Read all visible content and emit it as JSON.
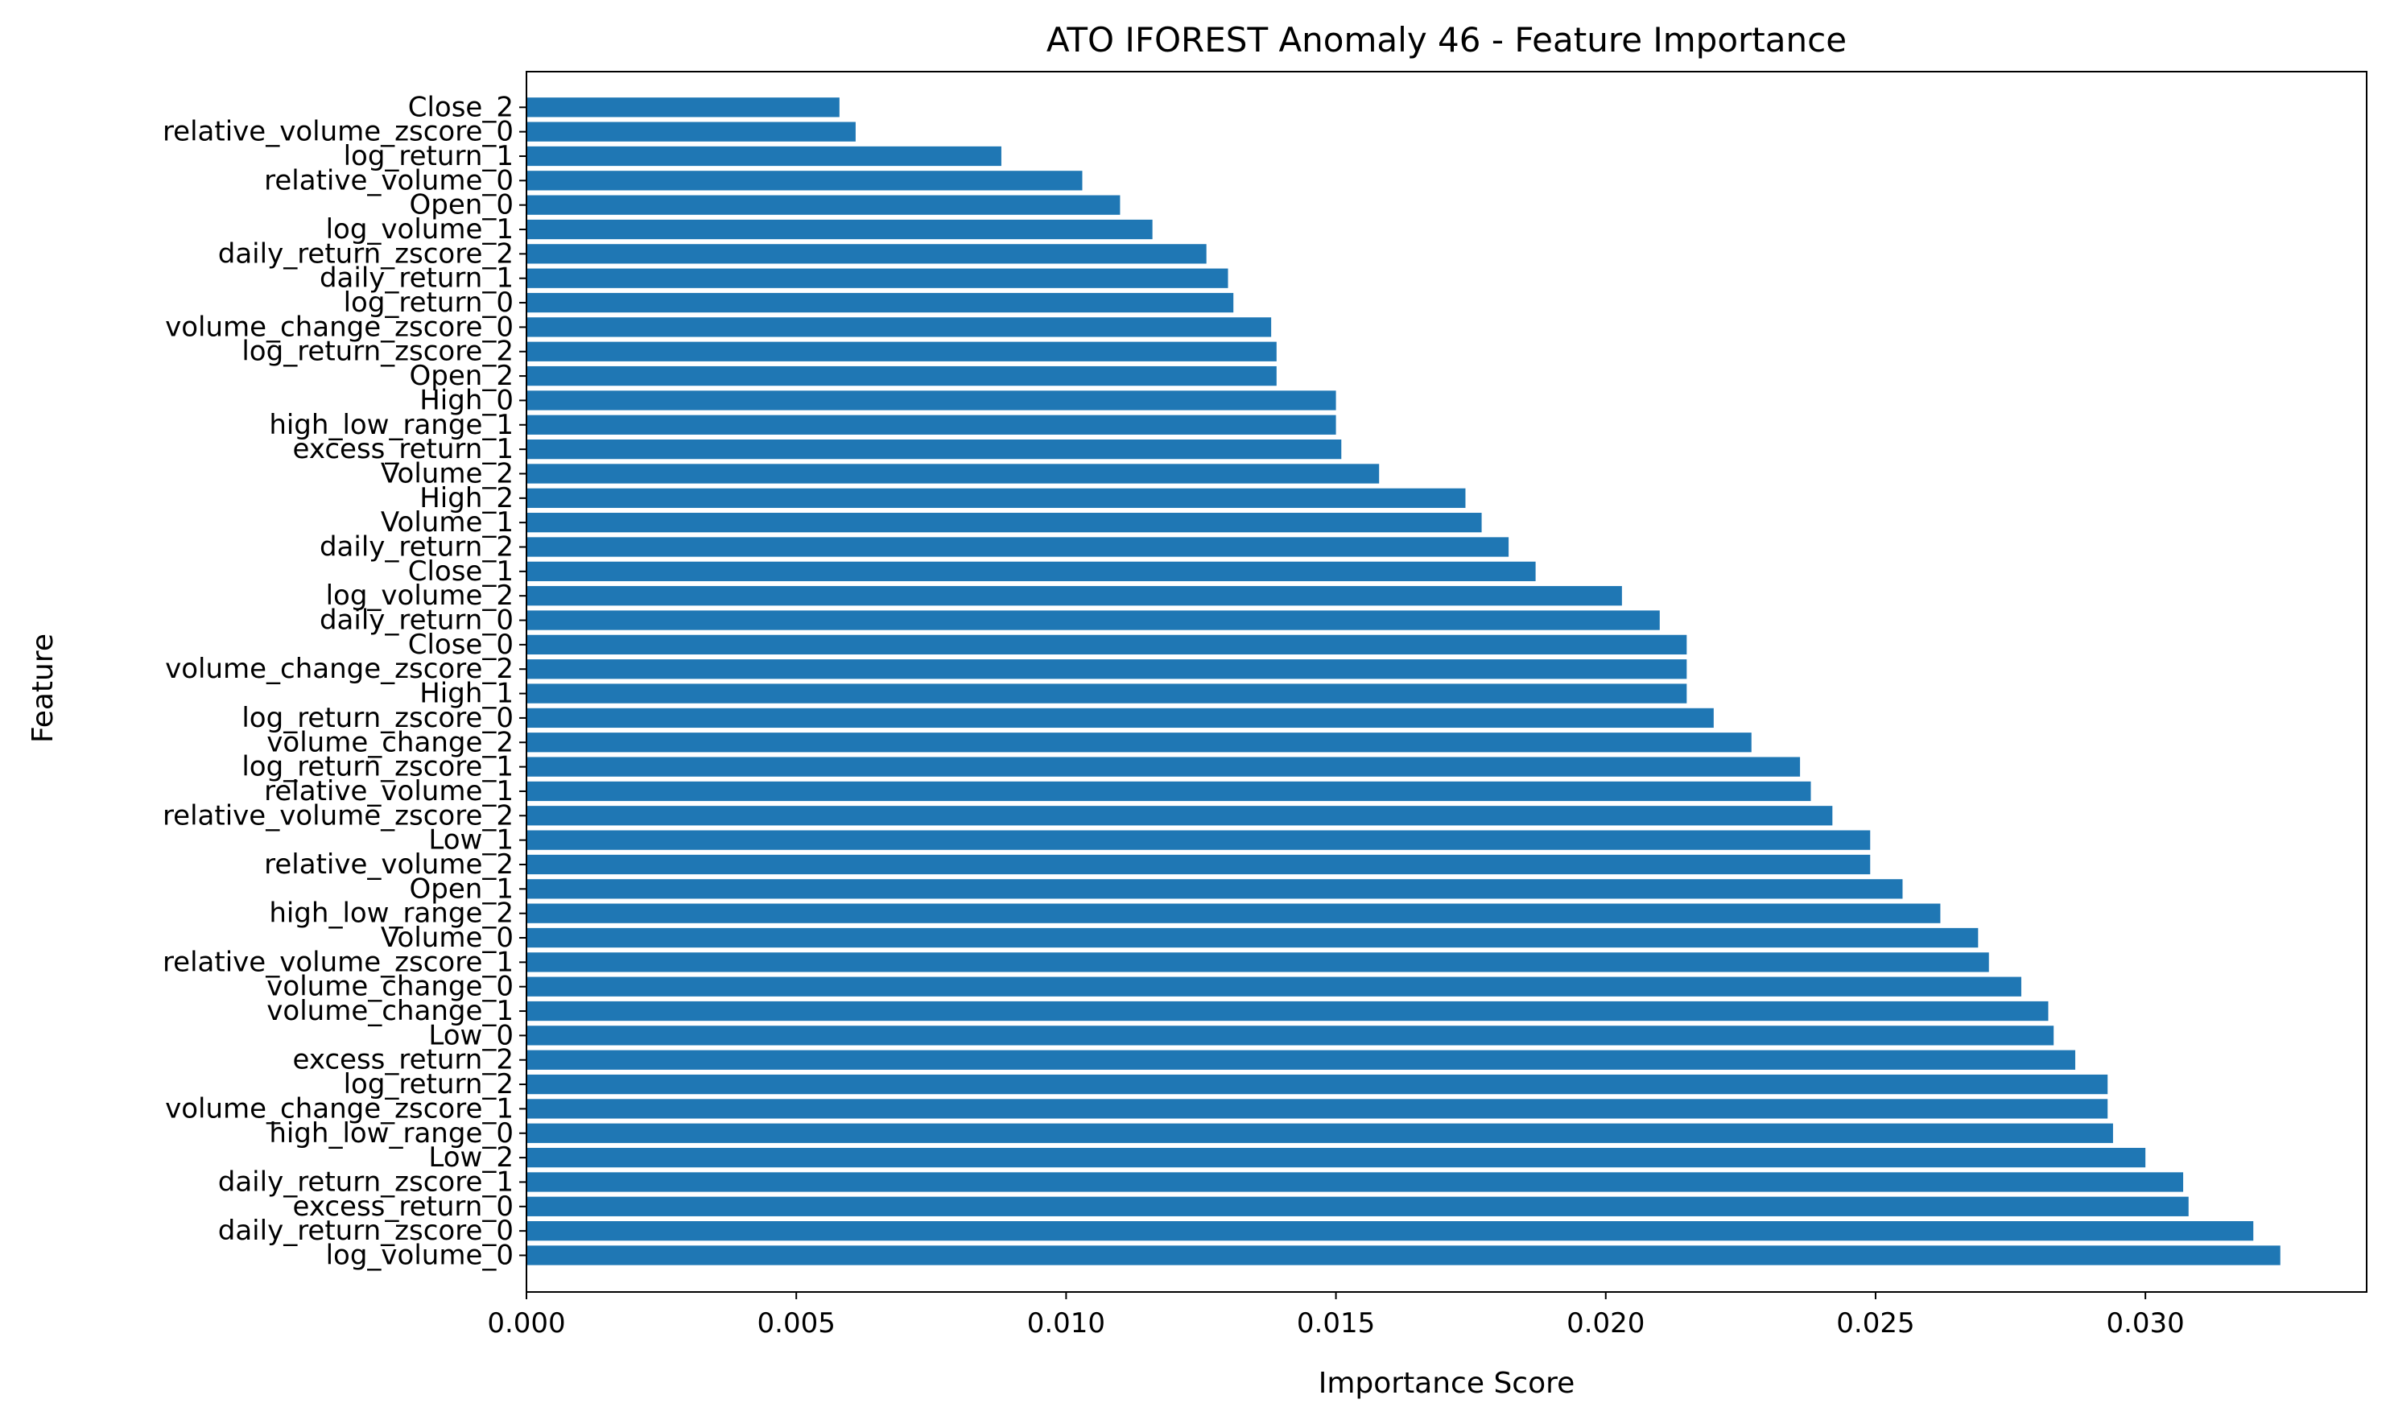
{
  "chart_data": {
    "type": "bar",
    "orientation": "horizontal",
    "title": "ATO IFOREST Anomaly 46 - Feature Importance",
    "xlabel": "Importance Score",
    "ylabel": "Feature",
    "xlim": [
      0,
      0.0341
    ],
    "xticks": [
      0.0,
      0.005,
      0.01,
      0.015,
      0.02,
      0.025,
      0.03
    ],
    "xtick_labels": [
      "0.000",
      "0.005",
      "0.010",
      "0.015",
      "0.020",
      "0.025",
      "0.030"
    ],
    "grid": false,
    "bar_color": "#1f77b4",
    "categories": [
      "log_volume_0",
      "daily_return_zscore_0",
      "excess_return_0",
      "daily_return_zscore_1",
      "Low_2",
      "high_low_range_0",
      "volume_change_zscore_1",
      "log_return_2",
      "excess_return_2",
      "Low_0",
      "volume_change_1",
      "volume_change_0",
      "relative_volume_zscore_1",
      "Volume_0",
      "high_low_range_2",
      "Open_1",
      "relative_volume_2",
      "Low_1",
      "relative_volume_zscore_2",
      "relative_volume_1",
      "log_return_zscore_1",
      "volume_change_2",
      "log_return_zscore_0",
      "High_1",
      "volume_change_zscore_2",
      "Close_0",
      "daily_return_0",
      "log_volume_2",
      "Close_1",
      "daily_return_2",
      "Volume_1",
      "High_2",
      "Volume_2",
      "excess_return_1",
      "high_low_range_1",
      "High_0",
      "Open_2",
      "log_return_zscore_2",
      "volume_change_zscore_0",
      "log_return_0",
      "daily_return_1",
      "daily_return_zscore_2",
      "log_volume_1",
      "Open_0",
      "relative_volume_0",
      "log_return_1",
      "relative_volume_zscore_0",
      "Close_2"
    ],
    "values": [
      0.0325,
      0.032,
      0.0308,
      0.0307,
      0.03,
      0.0294,
      0.0293,
      0.0293,
      0.0287,
      0.0283,
      0.0282,
      0.0277,
      0.0271,
      0.0269,
      0.0262,
      0.0255,
      0.0249,
      0.0249,
      0.0242,
      0.0238,
      0.0236,
      0.0227,
      0.022,
      0.0215,
      0.0215,
      0.0215,
      0.021,
      0.0203,
      0.0187,
      0.0182,
      0.0177,
      0.0174,
      0.0158,
      0.0151,
      0.015,
      0.015,
      0.0139,
      0.0139,
      0.0138,
      0.0131,
      0.013,
      0.0126,
      0.0116,
      0.011,
      0.0103,
      0.0088,
      0.0061,
      0.0058
    ]
  }
}
